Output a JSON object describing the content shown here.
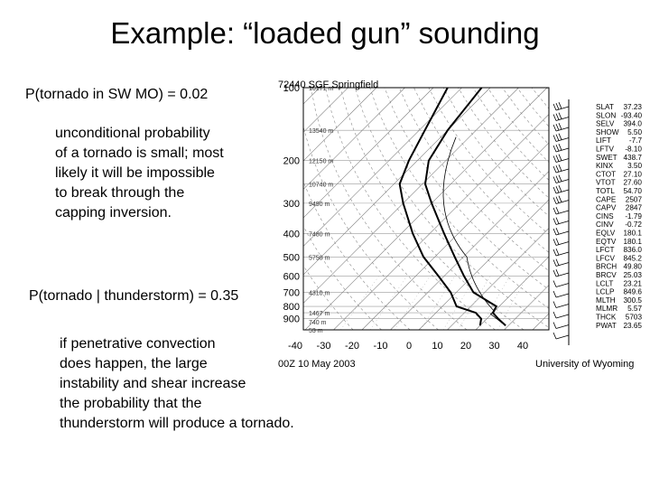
{
  "slide": {
    "title": "Example: “loaded gun” sounding",
    "p_tornado_label": "P(tornado in SW MO) = 0.02",
    "paragraph1": [
      "unconditional probability",
      "of a tornado is small; most",
      "likely it will be impossible",
      "to break through the",
      "capping inversion."
    ],
    "p_conditional_label": "P(tornado | thunderstorm) = 0.35",
    "paragraph2": [
      "if penetrative convection",
      "does happen, the large",
      "instability and shear increase",
      "the probability that the",
      "thunderstorm will produce a tornado."
    ]
  },
  "sounding": {
    "station_header": "72440 SGF Springfield",
    "date_label": "00Z 10 May 2003",
    "credit": "University of Wyoming",
    "pressure_levels": [
      "100",
      "200",
      "300",
      "400",
      "500",
      "600",
      "700",
      "800",
      "900"
    ],
    "temperature_ticks": [
      "-40",
      "-30",
      "-20",
      "-10",
      "0",
      "10",
      "20",
      "30",
      "40"
    ],
    "height_labels": [
      "16171 m",
      "13540 m",
      "12150 m",
      "10740 m",
      "9490 m",
      "7480 m",
      "5750 m",
      "4310 m",
      "1467 m",
      "740 m",
      "53 m"
    ],
    "indices": [
      {
        "name": "SLAT",
        "value": "37.23"
      },
      {
        "name": "SLON",
        "value": "-93.40"
      },
      {
        "name": "SELV",
        "value": "394.0"
      },
      {
        "name": "SHOW",
        "value": "5.50"
      },
      {
        "name": "LIFT",
        "value": "-7.7"
      },
      {
        "name": "LFTV",
        "value": "-8.10"
      },
      {
        "name": "SWET",
        "value": "438.7"
      },
      {
        "name": "KINX",
        "value": "3.50"
      },
      {
        "name": "CTOT",
        "value": "27.10"
      },
      {
        "name": "VTOT",
        "value": "27.60"
      },
      {
        "name": "TOTL",
        "value": "54.70"
      },
      {
        "name": "CAPE",
        "value": "2507"
      },
      {
        "name": "CAPV",
        "value": "2847"
      },
      {
        "name": "CINS",
        "value": "-1.79"
      },
      {
        "name": "CINV",
        "value": "-0.72"
      },
      {
        "name": "EQLV",
        "value": "180.1"
      },
      {
        "name": "EQTV",
        "value": "180.1"
      },
      {
        "name": "LFCT",
        "value": "836.0"
      },
      {
        "name": "LFCV",
        "value": "845.2"
      },
      {
        "name": "BRCH",
        "value": "49.80"
      },
      {
        "name": "BRCV",
        "value": "25.03"
      },
      {
        "name": "LCLT",
        "value": "23.21"
      },
      {
        "name": "LCLP",
        "value": "849.6"
      },
      {
        "name": "MLTH",
        "value": "300.5"
      },
      {
        "name": "MLMR",
        "value": "5.57"
      },
      {
        "name": "THCK",
        "value": "5703"
      },
      {
        "name": "PWAT",
        "value": "23.65"
      }
    ],
    "temperature_profile": [
      [
        960,
        29
      ],
      [
        900,
        24
      ],
      [
        850,
        20
      ],
      [
        800,
        19
      ],
      [
        700,
        6
      ],
      [
        600,
        -3
      ],
      [
        500,
        -13
      ],
      [
        400,
        -25
      ],
      [
        300,
        -40
      ],
      [
        250,
        -49
      ],
      [
        200,
        -56
      ],
      [
        150,
        -60
      ],
      [
        100,
        -63
      ]
    ],
    "dewpoint_profile": [
      [
        960,
        20
      ],
      [
        900,
        18
      ],
      [
        850,
        14
      ],
      [
        800,
        5
      ],
      [
        700,
        -2
      ],
      [
        600,
        -12
      ],
      [
        500,
        -24
      ],
      [
        400,
        -36
      ],
      [
        300,
        -50
      ],
      [
        250,
        -58
      ],
      [
        200,
        -63
      ],
      [
        150,
        -68
      ],
      [
        100,
        -75
      ]
    ]
  }
}
